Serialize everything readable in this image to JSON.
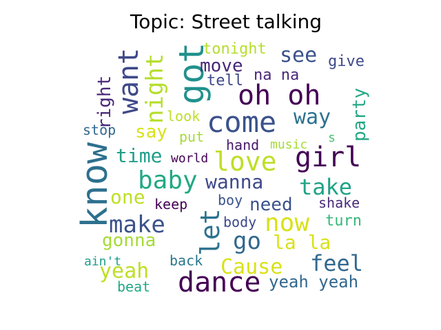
{
  "title": "Topic: Street talking",
  "words": [
    {
      "text": "know",
      "color": "#2d708e"
    },
    {
      "text": "dance",
      "color": "#440154"
    },
    {
      "text": "got",
      "color": "#21918c"
    },
    {
      "text": "oh oh",
      "color": "#440154"
    },
    {
      "text": "come",
      "color": "#3b528b"
    },
    {
      "text": "love",
      "color": "#bddf26"
    },
    {
      "text": "want",
      "color": "#3e4989"
    },
    {
      "text": "night",
      "color": "#b5de2b"
    },
    {
      "text": "let",
      "color": "#2c728e"
    },
    {
      "text": "girl",
      "color": "#440154"
    },
    {
      "text": "baby",
      "color": "#22a884"
    },
    {
      "text": "make",
      "color": "#3b528b"
    },
    {
      "text": "now",
      "color": "#d8e219"
    },
    {
      "text": "take",
      "color": "#20a386"
    },
    {
      "text": "feel",
      "color": "#31688e"
    },
    {
      "text": "Cause",
      "color": "#d8e219"
    },
    {
      "text": "wanna",
      "color": "#3e4989"
    },
    {
      "text": "go",
      "color": "#31688e"
    },
    {
      "text": "see",
      "color": "#3b528b"
    },
    {
      "text": "way",
      "color": "#2c728e"
    },
    {
      "text": "party",
      "color": "#22a884"
    },
    {
      "text": "right",
      "color": "#482878"
    },
    {
      "text": "la la",
      "color": "#d8e219"
    },
    {
      "text": "yeah",
      "color": "#bddf26"
    },
    {
      "text": "time",
      "color": "#1f9e89"
    },
    {
      "text": "move",
      "color": "#482878"
    },
    {
      "text": "one",
      "color": "#bddf26"
    },
    {
      "text": "say",
      "color": "#d8e219"
    },
    {
      "text": "gonna",
      "color": "#a5db36"
    },
    {
      "text": "yeah yeah",
      "color": "#31688e"
    },
    {
      "text": "need",
      "color": "#3b528b"
    },
    {
      "text": "tonight",
      "color": "#b5de2b"
    },
    {
      "text": "hand",
      "color": "#481a6c"
    },
    {
      "text": "look",
      "color": "#bddf26"
    },
    {
      "text": "put",
      "color": "#a5db36"
    },
    {
      "text": "na na",
      "color": "#482878"
    },
    {
      "text": "tell",
      "color": "#3e4989"
    },
    {
      "text": "give",
      "color": "#3e4989"
    },
    {
      "text": "keep",
      "color": "#440154"
    },
    {
      "text": "boy",
      "color": "#3b528b"
    },
    {
      "text": "body",
      "color": "#3e4989"
    },
    {
      "text": "back",
      "color": "#2a788e"
    },
    {
      "text": "turn",
      "color": "#35b779"
    },
    {
      "text": "shake",
      "color": "#482878"
    },
    {
      "text": "world",
      "color": "#440154"
    },
    {
      "text": "music",
      "color": "#a5db36"
    },
    {
      "text": "s",
      "color": "#4ac16d"
    },
    {
      "text": "stop",
      "color": "#31688e"
    },
    {
      "text": "beat",
      "color": "#22a884"
    },
    {
      "text": "ain't",
      "color": "#1f9e89"
    }
  ]
}
